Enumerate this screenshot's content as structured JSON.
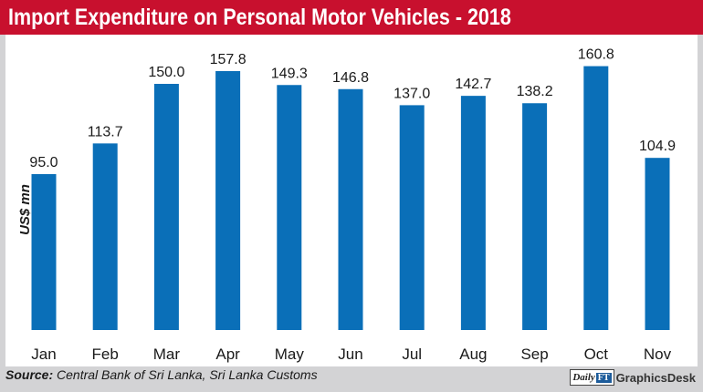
{
  "header": {
    "title": "Import Expenditure on Personal Motor Vehicles - 2018"
  },
  "footer": {
    "source_label": "Source:",
    "source_text": "Central Bank of Sri Lanka, Sri Lanka Customs",
    "credit_logo_text": "Daily",
    "credit_logo_badge": "FT",
    "credit_text": "GraphicsDesk"
  },
  "colors": {
    "title_bar": "#c8102e",
    "bar": "#0a6fb8",
    "background": "#d3d3d5"
  },
  "chart_data": {
    "type": "bar",
    "title": "Import Expenditure on Personal Motor Vehicles - 2018",
    "xlabel": "",
    "ylabel": "US$ mn",
    "categories": [
      "Jan",
      "Feb",
      "Mar",
      "Apr",
      "May",
      "Jun",
      "Jul",
      "Aug",
      "Sep",
      "Oct",
      "Nov"
    ],
    "values": [
      95.0,
      113.7,
      150.0,
      157.8,
      149.3,
      146.8,
      137.0,
      142.7,
      138.2,
      160.8,
      104.9
    ],
    "value_labels": [
      "95.0",
      "113.7",
      "150.0",
      "157.8",
      "149.3",
      "146.8",
      "137.0",
      "142.7",
      "138.2",
      "160.8",
      "104.9"
    ],
    "ylim": [
      0,
      180
    ],
    "grid": false,
    "legend": "none",
    "bar_color": "#0a6fb8"
  }
}
